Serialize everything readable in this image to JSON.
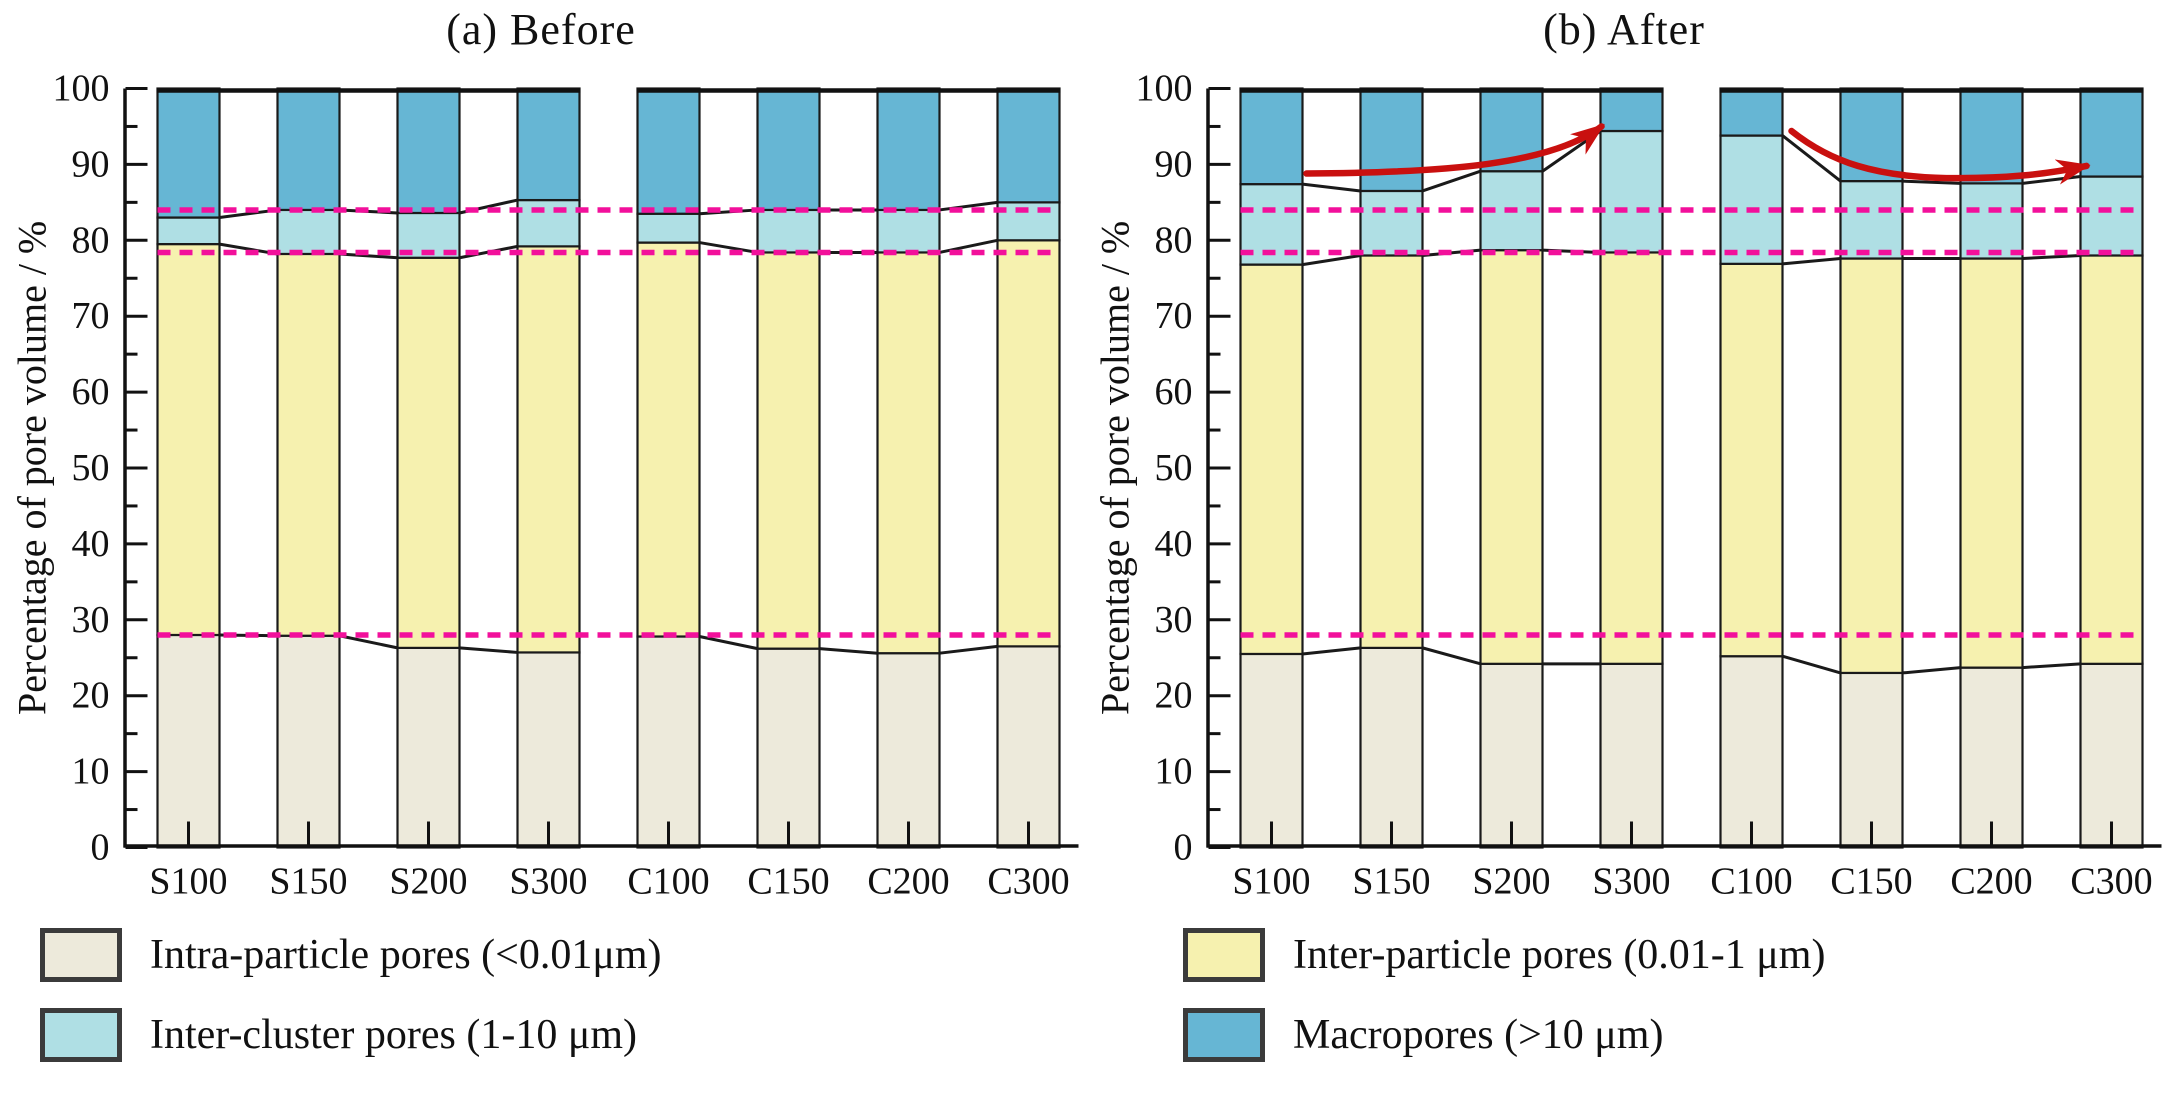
{
  "colors": {
    "intra": "#EDEADB",
    "inter": "#F6F1AF",
    "cluster": "#AFDFE4",
    "macro": "#66B6D4",
    "reference_line": "#F2109B",
    "arrow": "#C9100F",
    "bar_outline": "#1a1a1a",
    "axis": "#111111"
  },
  "chart_data": [
    {
      "type": "bar",
      "stacked": true,
      "title": "(a) Before",
      "xlabel": "",
      "ylabel": "Percentage of pore volume / %",
      "ylim": [
        0,
        100
      ],
      "ytick_step": 10,
      "yminor_step": 5,
      "grid": false,
      "legend_position": "bottom",
      "categories": [
        "S100",
        "S150",
        "S200",
        "S300",
        "C100",
        "C150",
        "C200",
        "C300"
      ],
      "series": [
        {
          "name": "Intra-particle pores (<0.01μm)",
          "color": "#EDEADB",
          "values": [
            28.0,
            27.9,
            26.3,
            25.7,
            27.8,
            26.2,
            25.6,
            26.5
          ]
        },
        {
          "name": "Inter-particle pores (0.01-1 μm)",
          "color": "#F6F1AF",
          "values": [
            51.5,
            50.3,
            51.4,
            53.5,
            51.9,
            52.2,
            52.8,
            53.5
          ]
        },
        {
          "name": "Inter-cluster pores (1-10 μm)",
          "color": "#AFDFE4",
          "values": [
            3.5,
            5.8,
            5.9,
            6.1,
            3.8,
            5.6,
            5.6,
            5.0
          ]
        },
        {
          "name": "Macropores (>10 μm)",
          "color": "#66B6D4",
          "values": [
            17.0,
            16.0,
            16.4,
            14.7,
            16.5,
            16.0,
            16.0,
            15.0
          ]
        }
      ],
      "reference_lines": [
        84.0,
        78.4,
        28.0
      ],
      "group_break_after": 3,
      "arrows": []
    },
    {
      "type": "bar",
      "stacked": true,
      "title": "(b) After",
      "xlabel": "",
      "ylabel": "Percentage of pore volume / %",
      "ylim": [
        0,
        100
      ],
      "ytick_step": 10,
      "yminor_step": 5,
      "grid": false,
      "legend_position": "bottom",
      "categories": [
        "S100",
        "S150",
        "S200",
        "S300",
        "C100",
        "C150",
        "C200",
        "C300"
      ],
      "series": [
        {
          "name": "Intra-particle pores (<0.01μm)",
          "color": "#EDEADB",
          "values": [
            25.5,
            26.3,
            24.2,
            24.2,
            25.2,
            23.0,
            23.7,
            24.2
          ]
        },
        {
          "name": "Inter-particle pores (0.01-1 μm)",
          "color": "#F6F1AF",
          "values": [
            51.3,
            51.7,
            54.5,
            54.2,
            51.7,
            54.6,
            53.9,
            53.8
          ]
        },
        {
          "name": "Inter-cluster pores (1-10 μm)",
          "color": "#AFDFE4",
          "values": [
            10.6,
            8.5,
            10.4,
            16.0,
            16.9,
            10.2,
            9.9,
            10.4
          ]
        },
        {
          "name": "Macropores (>10 μm)",
          "color": "#66B6D4",
          "values": [
            12.6,
            13.5,
            10.9,
            5.6,
            6.2,
            12.2,
            12.5,
            11.6
          ]
        }
      ],
      "reference_lines": [
        84.0,
        78.4,
        28.0
      ],
      "group_break_after": 3,
      "arrows": [
        {
          "name": "s-group-increase-arrow",
          "points": [
            [
              100,
              88.8
            ],
            [
              240,
              88.9
            ],
            [
              345,
              90.0
            ],
            [
              395,
              95.0
            ]
          ]
        },
        {
          "name": "c-group-trend-arrow",
          "points": [
            [
              585,
              94.4
            ],
            [
              625,
              90.2
            ],
            [
              670,
              88.4
            ],
            [
              740,
              88.2
            ],
            [
              800,
              88.1
            ],
            [
              840,
              88.7
            ],
            [
              880,
              89.8
            ]
          ]
        }
      ]
    }
  ],
  "legend": {
    "items": [
      {
        "label": "Intra-particle pores (<0.01μm)",
        "color": "#EDEADB"
      },
      {
        "label": "Inter-cluster pores (1-10 μm)",
        "color": "#AFDFE4"
      },
      {
        "label": "Inter-particle pores (0.01-1 μm)",
        "color": "#F6F1AF"
      },
      {
        "label": "Macropores (>10 μm)",
        "color": "#66B6D4"
      }
    ]
  }
}
